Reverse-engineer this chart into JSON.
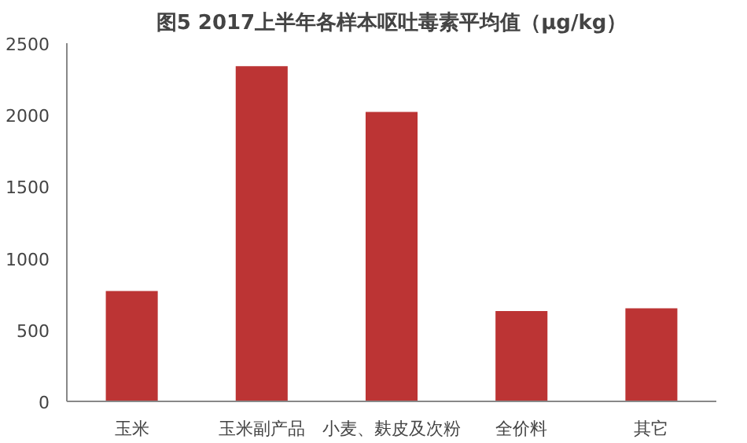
{
  "chart_data": {
    "type": "bar",
    "title": "图5 2017上半年各样本呕吐毒素平均值（μg/kg）",
    "categories": [
      "玉米",
      "玉米副产品",
      "小麦、麸皮及次粉",
      "全价料",
      "其它"
    ],
    "values": [
      770,
      2340,
      2020,
      630,
      650
    ],
    "color": "#bc3434",
    "ylim": [
      0,
      2500
    ],
    "yticks": [
      0,
      500,
      1000,
      1500,
      2000,
      2500
    ],
    "grid": false
  }
}
